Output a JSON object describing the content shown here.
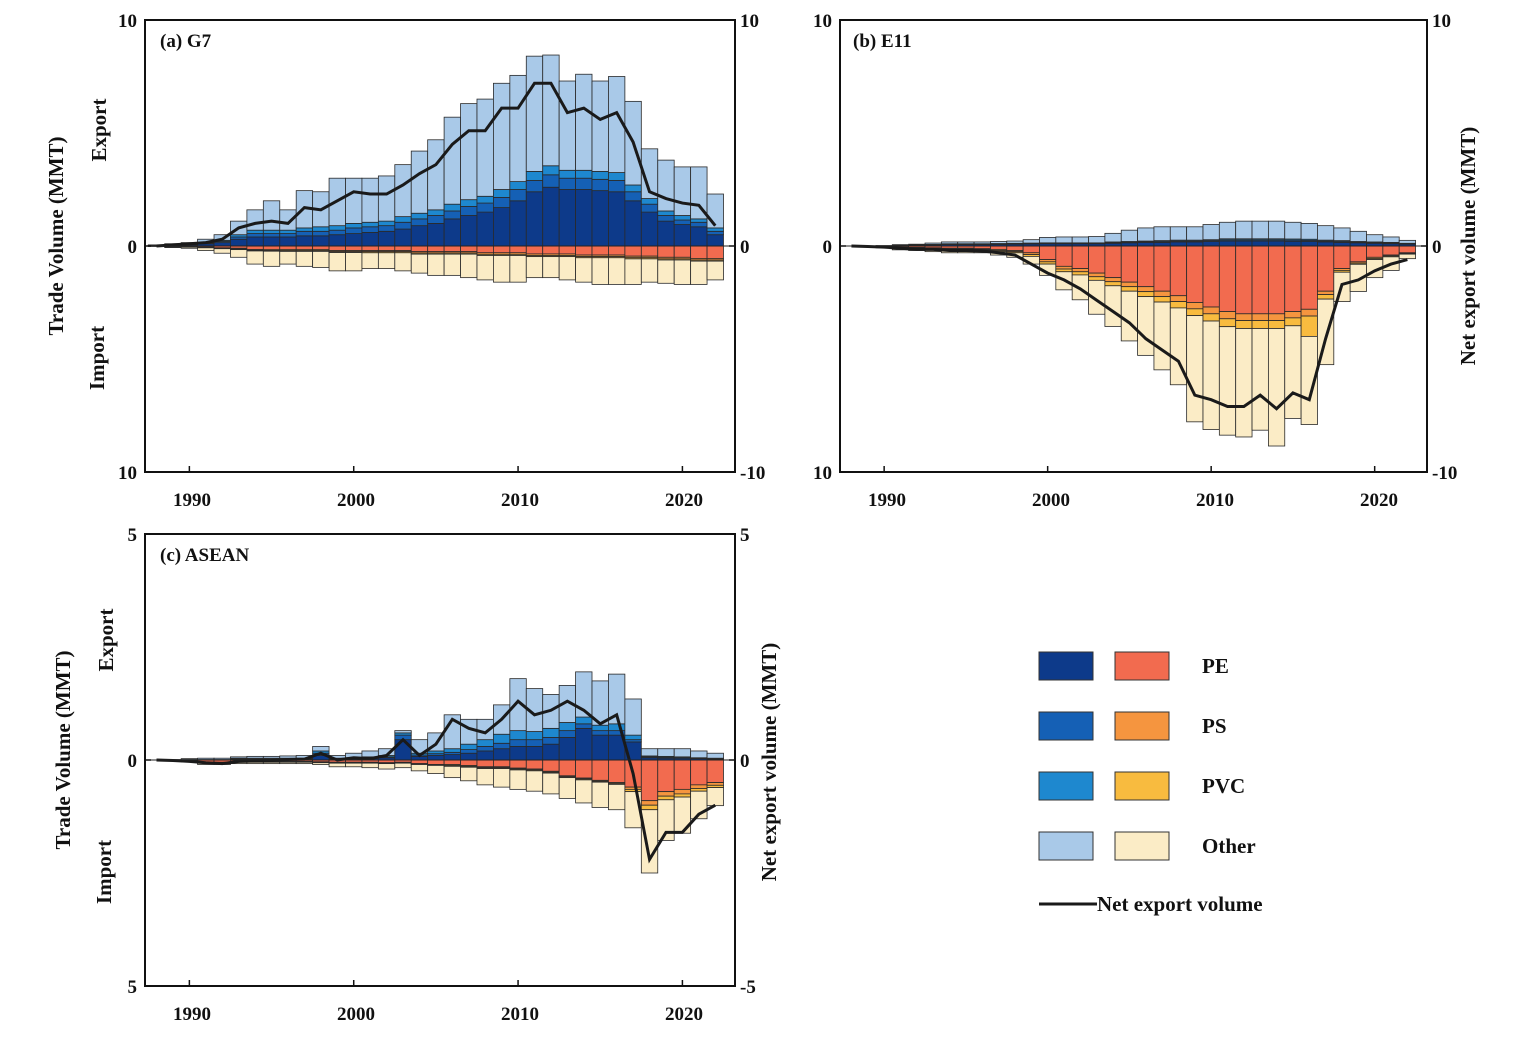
{
  "figure": {
    "years": [
      1988,
      1989,
      1990,
      1991,
      1992,
      1993,
      1994,
      1995,
      1996,
      1997,
      1998,
      1999,
      2000,
      2001,
      2002,
      2003,
      2004,
      2005,
      2006,
      2007,
      2008,
      2009,
      2010,
      2011,
      2012,
      2013,
      2014,
      2015,
      2016,
      2017,
      2018,
      2019,
      2020,
      2021,
      2022
    ],
    "x_ticks": [
      "1990",
      "2000",
      "2010",
      "2020"
    ],
    "colors": {
      "PE_export": "#0d3a8a",
      "PS_export": "#1560b5",
      "PVC_export": "#1e88cf",
      "Other_export": "#a9c9e8",
      "PE_import": "#f26b4f",
      "PS_import": "#f5953f",
      "PVC_import": "#f8bb3f",
      "Other_import": "#fbecc6",
      "net": "#1a1a1a"
    }
  },
  "chart_data": [
    {
      "id": "g7",
      "type": "bar",
      "title": "(a) G7",
      "left_axis": {
        "ylim": [
          -10,
          10
        ],
        "tick_labels": [
          "10",
          "0",
          "10"
        ],
        "label": "Trade Volume (MMT)",
        "export_label": "Export",
        "import_label": "Import"
      },
      "right_axis": {
        "ylim": [
          -10,
          10
        ],
        "tick_labels": [
          "10",
          "0",
          "-10"
        ],
        "label": ""
      },
      "export": {
        "PE": [
          0.02,
          0.03,
          0.05,
          0.1,
          0.15,
          0.3,
          0.4,
          0.4,
          0.4,
          0.45,
          0.45,
          0.5,
          0.55,
          0.6,
          0.65,
          0.75,
          0.9,
          1.0,
          1.2,
          1.35,
          1.5,
          1.7,
          2.0,
          2.4,
          2.6,
          2.5,
          2.5,
          2.45,
          2.4,
          2.0,
          1.5,
          1.1,
          0.95,
          0.85,
          0.5
        ],
        "PS": [
          0.01,
          0.01,
          0.02,
          0.03,
          0.05,
          0.1,
          0.15,
          0.15,
          0.15,
          0.2,
          0.2,
          0.2,
          0.25,
          0.25,
          0.25,
          0.3,
          0.3,
          0.35,
          0.35,
          0.4,
          0.4,
          0.45,
          0.5,
          0.5,
          0.55,
          0.5,
          0.5,
          0.5,
          0.5,
          0.4,
          0.35,
          0.25,
          0.2,
          0.2,
          0.15
        ],
        "PVC": [
          0.01,
          0.01,
          0.02,
          0.03,
          0.05,
          0.1,
          0.15,
          0.15,
          0.15,
          0.15,
          0.2,
          0.2,
          0.2,
          0.2,
          0.2,
          0.25,
          0.25,
          0.25,
          0.3,
          0.3,
          0.3,
          0.35,
          0.35,
          0.4,
          0.4,
          0.35,
          0.35,
          0.35,
          0.35,
          0.3,
          0.25,
          0.2,
          0.2,
          0.15,
          0.15
        ],
        "Other": [
          0.01,
          0.05,
          0.06,
          0.14,
          0.25,
          0.6,
          0.9,
          1.3,
          0.9,
          1.65,
          1.55,
          2.1,
          2.0,
          1.95,
          2.0,
          2.3,
          2.75,
          3.1,
          3.85,
          4.25,
          4.3,
          4.7,
          4.7,
          5.1,
          4.9,
          3.95,
          4.25,
          4.0,
          4.25,
          3.7,
          2.2,
          2.25,
          2.15,
          2.3,
          1.5
        ]
      },
      "import": {
        "PE": [
          0.01,
          0.02,
          0.03,
          0.05,
          0.08,
          0.1,
          0.15,
          0.15,
          0.15,
          0.15,
          0.15,
          0.2,
          0.2,
          0.2,
          0.2,
          0.2,
          0.25,
          0.25,
          0.25,
          0.25,
          0.3,
          0.3,
          0.3,
          0.35,
          0.35,
          0.35,
          0.4,
          0.4,
          0.4,
          0.45,
          0.45,
          0.5,
          0.5,
          0.55,
          0.55
        ],
        "PS": [
          0.0,
          0.01,
          0.01,
          0.02,
          0.02,
          0.03,
          0.04,
          0.05,
          0.05,
          0.05,
          0.05,
          0.05,
          0.05,
          0.05,
          0.05,
          0.05,
          0.06,
          0.06,
          0.06,
          0.06,
          0.07,
          0.07,
          0.07,
          0.07,
          0.07,
          0.07,
          0.07,
          0.07,
          0.07,
          0.07,
          0.07,
          0.07,
          0.07,
          0.07,
          0.07
        ],
        "PVC": [
          0.0,
          0.01,
          0.01,
          0.01,
          0.02,
          0.03,
          0.03,
          0.03,
          0.04,
          0.04,
          0.04,
          0.04,
          0.04,
          0.05,
          0.05,
          0.05,
          0.05,
          0.05,
          0.05,
          0.05,
          0.05,
          0.05,
          0.05,
          0.05,
          0.05,
          0.05,
          0.05,
          0.05,
          0.05,
          0.05,
          0.05,
          0.05,
          0.05,
          0.05,
          0.05
        ],
        "Other": [
          0.01,
          0.03,
          0.05,
          0.12,
          0.2,
          0.34,
          0.58,
          0.67,
          0.56,
          0.66,
          0.71,
          0.81,
          0.81,
          0.7,
          0.7,
          0.8,
          0.84,
          0.94,
          0.94,
          1.04,
          1.08,
          1.18,
          1.18,
          0.93,
          0.93,
          1.03,
          1.08,
          1.18,
          1.18,
          1.13,
          1.03,
          1.03,
          1.08,
          1.03,
          0.83
        ]
      },
      "net": [
        0,
        0.05,
        0.1,
        0.15,
        0.3,
        0.8,
        1.0,
        1.1,
        1.0,
        1.7,
        1.6,
        2.0,
        2.4,
        2.3,
        2.3,
        2.7,
        3.2,
        3.6,
        4.5,
        5.1,
        5.1,
        6.1,
        6.1,
        7.2,
        7.2,
        5.9,
        6.1,
        5.6,
        5.9,
        4.6,
        2.4,
        2.1,
        1.9,
        1.8,
        0.9
      ]
    },
    {
      "id": "e11",
      "type": "bar",
      "title": "(b) E11",
      "left_axis": {
        "ylim": [
          -10,
          10
        ],
        "tick_labels": [
          "10",
          "0",
          "10"
        ],
        "label": ""
      },
      "right_axis": {
        "ylim": [
          -10,
          10
        ],
        "tick_labels": [
          "10",
          "0",
          "-10"
        ],
        "label": "Net export volume (MMT)"
      },
      "export": {
        "PE": [
          0.0,
          0.0,
          0.01,
          0.02,
          0.03,
          0.05,
          0.06,
          0.06,
          0.06,
          0.07,
          0.08,
          0.09,
          0.1,
          0.1,
          0.1,
          0.1,
          0.12,
          0.14,
          0.16,
          0.16,
          0.18,
          0.18,
          0.2,
          0.22,
          0.22,
          0.22,
          0.22,
          0.21,
          0.2,
          0.18,
          0.16,
          0.14,
          0.12,
          0.1,
          0.08
        ],
        "PS": [
          0.0,
          0.0,
          0.0,
          0.01,
          0.01,
          0.01,
          0.02,
          0.02,
          0.02,
          0.02,
          0.02,
          0.02,
          0.02,
          0.02,
          0.02,
          0.02,
          0.03,
          0.03,
          0.03,
          0.04,
          0.04,
          0.04,
          0.04,
          0.05,
          0.05,
          0.05,
          0.05,
          0.05,
          0.05,
          0.04,
          0.04,
          0.03,
          0.03,
          0.03,
          0.02
        ],
        "PVC": [
          0.0,
          0.0,
          0.0,
          0.01,
          0.01,
          0.01,
          0.02,
          0.02,
          0.02,
          0.02,
          0.02,
          0.02,
          0.02,
          0.02,
          0.02,
          0.02,
          0.03,
          0.03,
          0.03,
          0.04,
          0.04,
          0.04,
          0.04,
          0.05,
          0.05,
          0.05,
          0.05,
          0.05,
          0.05,
          0.04,
          0.04,
          0.03,
          0.03,
          0.03,
          0.02
        ],
        "Other": [
          0.0,
          0.0,
          0.01,
          0.02,
          0.03,
          0.06,
          0.08,
          0.08,
          0.08,
          0.09,
          0.1,
          0.15,
          0.24,
          0.26,
          0.26,
          0.28,
          0.38,
          0.5,
          0.58,
          0.61,
          0.59,
          0.59,
          0.67,
          0.73,
          0.78,
          0.78,
          0.78,
          0.74,
          0.7,
          0.64,
          0.56,
          0.45,
          0.32,
          0.24,
          0.13
        ]
      },
      "import": {
        "PE": [
          0.0,
          0.01,
          0.02,
          0.05,
          0.06,
          0.08,
          0.1,
          0.1,
          0.12,
          0.15,
          0.2,
          0.3,
          0.6,
          0.9,
          1.0,
          1.2,
          1.4,
          1.6,
          1.8,
          2.0,
          2.2,
          2.5,
          2.7,
          2.9,
          3.0,
          3.0,
          3.0,
          2.9,
          2.8,
          2.0,
          1.0,
          0.7,
          0.5,
          0.4,
          0.3
        ],
        "PS": [
          0.0,
          0.0,
          0.01,
          0.02,
          0.02,
          0.03,
          0.03,
          0.03,
          0.03,
          0.05,
          0.05,
          0.08,
          0.1,
          0.12,
          0.14,
          0.16,
          0.18,
          0.2,
          0.22,
          0.24,
          0.26,
          0.28,
          0.3,
          0.32,
          0.3,
          0.3,
          0.3,
          0.28,
          0.3,
          0.15,
          0.08,
          0.06,
          0.05,
          0.04,
          0.03
        ],
        "PVC": [
          0.0,
          0.0,
          0.01,
          0.02,
          0.02,
          0.02,
          0.03,
          0.03,
          0.03,
          0.05,
          0.05,
          0.08,
          0.1,
          0.12,
          0.14,
          0.16,
          0.18,
          0.2,
          0.22,
          0.24,
          0.28,
          0.3,
          0.32,
          0.35,
          0.35,
          0.35,
          0.35,
          0.35,
          0.9,
          0.2,
          0.08,
          0.05,
          0.05,
          0.04,
          0.03
        ],
        "Other": [
          0.0,
          0.01,
          0.04,
          0.08,
          0.1,
          0.12,
          0.14,
          0.14,
          0.12,
          0.15,
          0.2,
          0.34,
          0.5,
          0.8,
          1.1,
          1.5,
          1.8,
          2.2,
          2.6,
          3.0,
          3.4,
          4.7,
          4.8,
          4.8,
          4.8,
          4.5,
          5.2,
          4.1,
          3.9,
          2.9,
          1.3,
          1.2,
          0.8,
          0.6,
          0.2
        ]
      },
      "net": [
        0,
        -0.02,
        -0.05,
        -0.1,
        -0.15,
        -0.15,
        -0.2,
        -0.2,
        -0.22,
        -0.3,
        -0.4,
        -0.8,
        -1.2,
        -1.5,
        -1.9,
        -2.4,
        -2.9,
        -3.4,
        -4.1,
        -4.6,
        -5.1,
        -6.6,
        -6.8,
        -7.1,
        -7.1,
        -6.6,
        -7.2,
        -6.5,
        -6.8,
        -4.1,
        -1.7,
        -1.5,
        -1.1,
        -0.8,
        -0.6
      ]
    },
    {
      "id": "asean",
      "type": "bar",
      "title": "(c) ASEAN",
      "left_axis": {
        "ylim": [
          -5,
          5
        ],
        "tick_labels": [
          "5",
          "0",
          "5"
        ],
        "label": "Trade Volume (MMT)",
        "export_label": "Export",
        "import_label": "Import"
      },
      "right_axis": {
        "ylim": [
          -5,
          5
        ],
        "tick_labels": [
          "5",
          "0",
          "-5"
        ],
        "label": "Net export volume (MMT)"
      },
      "export": {
        "PE": [
          0.0,
          0.0,
          0.01,
          0.01,
          0.01,
          0.02,
          0.02,
          0.02,
          0.02,
          0.02,
          0.1,
          0.02,
          0.03,
          0.04,
          0.05,
          0.45,
          0.08,
          0.1,
          0.12,
          0.15,
          0.2,
          0.25,
          0.3,
          0.3,
          0.35,
          0.5,
          0.7,
          0.55,
          0.55,
          0.4,
          0.05,
          0.04,
          0.04,
          0.03,
          0.02
        ],
        "PS": [
          0.0,
          0.0,
          0.0,
          0.0,
          0.0,
          0.01,
          0.01,
          0.01,
          0.01,
          0.01,
          0.05,
          0.01,
          0.01,
          0.01,
          0.02,
          0.1,
          0.03,
          0.04,
          0.05,
          0.08,
          0.1,
          0.12,
          0.15,
          0.15,
          0.15,
          0.15,
          0.1,
          0.1,
          0.1,
          0.05,
          0.02,
          0.02,
          0.01,
          0.01,
          0.01
        ],
        "PVC": [
          0.0,
          0.0,
          0.0,
          0.0,
          0.0,
          0.01,
          0.01,
          0.01,
          0.01,
          0.01,
          0.05,
          0.01,
          0.01,
          0.02,
          0.03,
          0.05,
          0.04,
          0.06,
          0.08,
          0.12,
          0.15,
          0.2,
          0.2,
          0.18,
          0.2,
          0.18,
          0.15,
          0.12,
          0.15,
          0.1,
          0.02,
          0.02,
          0.02,
          0.01,
          0.01
        ],
        "Other": [
          0.0,
          0.01,
          0.02,
          0.03,
          0.03,
          0.03,
          0.04,
          0.04,
          0.05,
          0.06,
          0.1,
          0.06,
          0.1,
          0.13,
          0.15,
          0.05,
          0.3,
          0.4,
          0.75,
          0.55,
          0.45,
          0.65,
          1.15,
          0.95,
          0.75,
          0.82,
          1.0,
          0.98,
          1.1,
          0.8,
          0.16,
          0.17,
          0.18,
          0.15,
          0.11
        ]
      },
      "import": {
        "PE": [
          0.0,
          0.01,
          0.02,
          0.05,
          0.05,
          0.03,
          0.03,
          0.03,
          0.03,
          0.03,
          0.04,
          0.05,
          0.05,
          0.05,
          0.06,
          0.05,
          0.08,
          0.1,
          0.1,
          0.12,
          0.15,
          0.15,
          0.18,
          0.2,
          0.25,
          0.35,
          0.4,
          0.45,
          0.5,
          0.6,
          0.9,
          0.7,
          0.65,
          0.55,
          0.5
        ],
        "PS": [
          0.0,
          0.0,
          0.0,
          0.01,
          0.01,
          0.01,
          0.01,
          0.01,
          0.01,
          0.01,
          0.01,
          0.01,
          0.01,
          0.01,
          0.01,
          0.01,
          0.01,
          0.01,
          0.02,
          0.02,
          0.02,
          0.02,
          0.02,
          0.02,
          0.02,
          0.02,
          0.02,
          0.02,
          0.02,
          0.05,
          0.1,
          0.1,
          0.1,
          0.08,
          0.06
        ],
        "PVC": [
          0.0,
          0.0,
          0.0,
          0.01,
          0.01,
          0.01,
          0.01,
          0.01,
          0.01,
          0.01,
          0.01,
          0.01,
          0.01,
          0.01,
          0.01,
          0.01,
          0.01,
          0.01,
          0.02,
          0.02,
          0.02,
          0.02,
          0.02,
          0.02,
          0.02,
          0.02,
          0.02,
          0.02,
          0.02,
          0.05,
          0.1,
          0.08,
          0.07,
          0.06,
          0.05
        ],
        "Other": [
          0.0,
          0.01,
          0.02,
          0.03,
          0.03,
          0.03,
          0.03,
          0.03,
          0.03,
          0.03,
          0.04,
          0.08,
          0.08,
          0.1,
          0.12,
          0.1,
          0.14,
          0.18,
          0.25,
          0.3,
          0.36,
          0.41,
          0.43,
          0.45,
          0.46,
          0.46,
          0.51,
          0.56,
          0.56,
          0.8,
          1.4,
          0.9,
          0.8,
          0.61,
          0.4
        ]
      },
      "net": [
        0,
        -0.01,
        -0.03,
        -0.06,
        -0.08,
        -0.03,
        -0.02,
        -0.01,
        0.01,
        0.02,
        0.15,
        0.0,
        0.05,
        0.03,
        0.1,
        0.45,
        0.1,
        0.35,
        0.9,
        0.7,
        0.6,
        0.9,
        1.3,
        1.0,
        1.1,
        1.3,
        1.1,
        0.8,
        1.0,
        -0.3,
        -2.2,
        -1.6,
        -1.6,
        -1.2,
        -1.0
      ]
    }
  ],
  "legend": {
    "items": [
      {
        "label": "PE",
        "export_key": "PE_export",
        "import_key": "PE_import"
      },
      {
        "label": "PS",
        "export_key": "PS_export",
        "import_key": "PS_import"
      },
      {
        "label": "PVC",
        "export_key": "PVC_export",
        "import_key": "PVC_import"
      },
      {
        "label": "Other",
        "export_key": "Other_export",
        "import_key": "Other_import"
      }
    ],
    "line_label": "Net export volume"
  }
}
